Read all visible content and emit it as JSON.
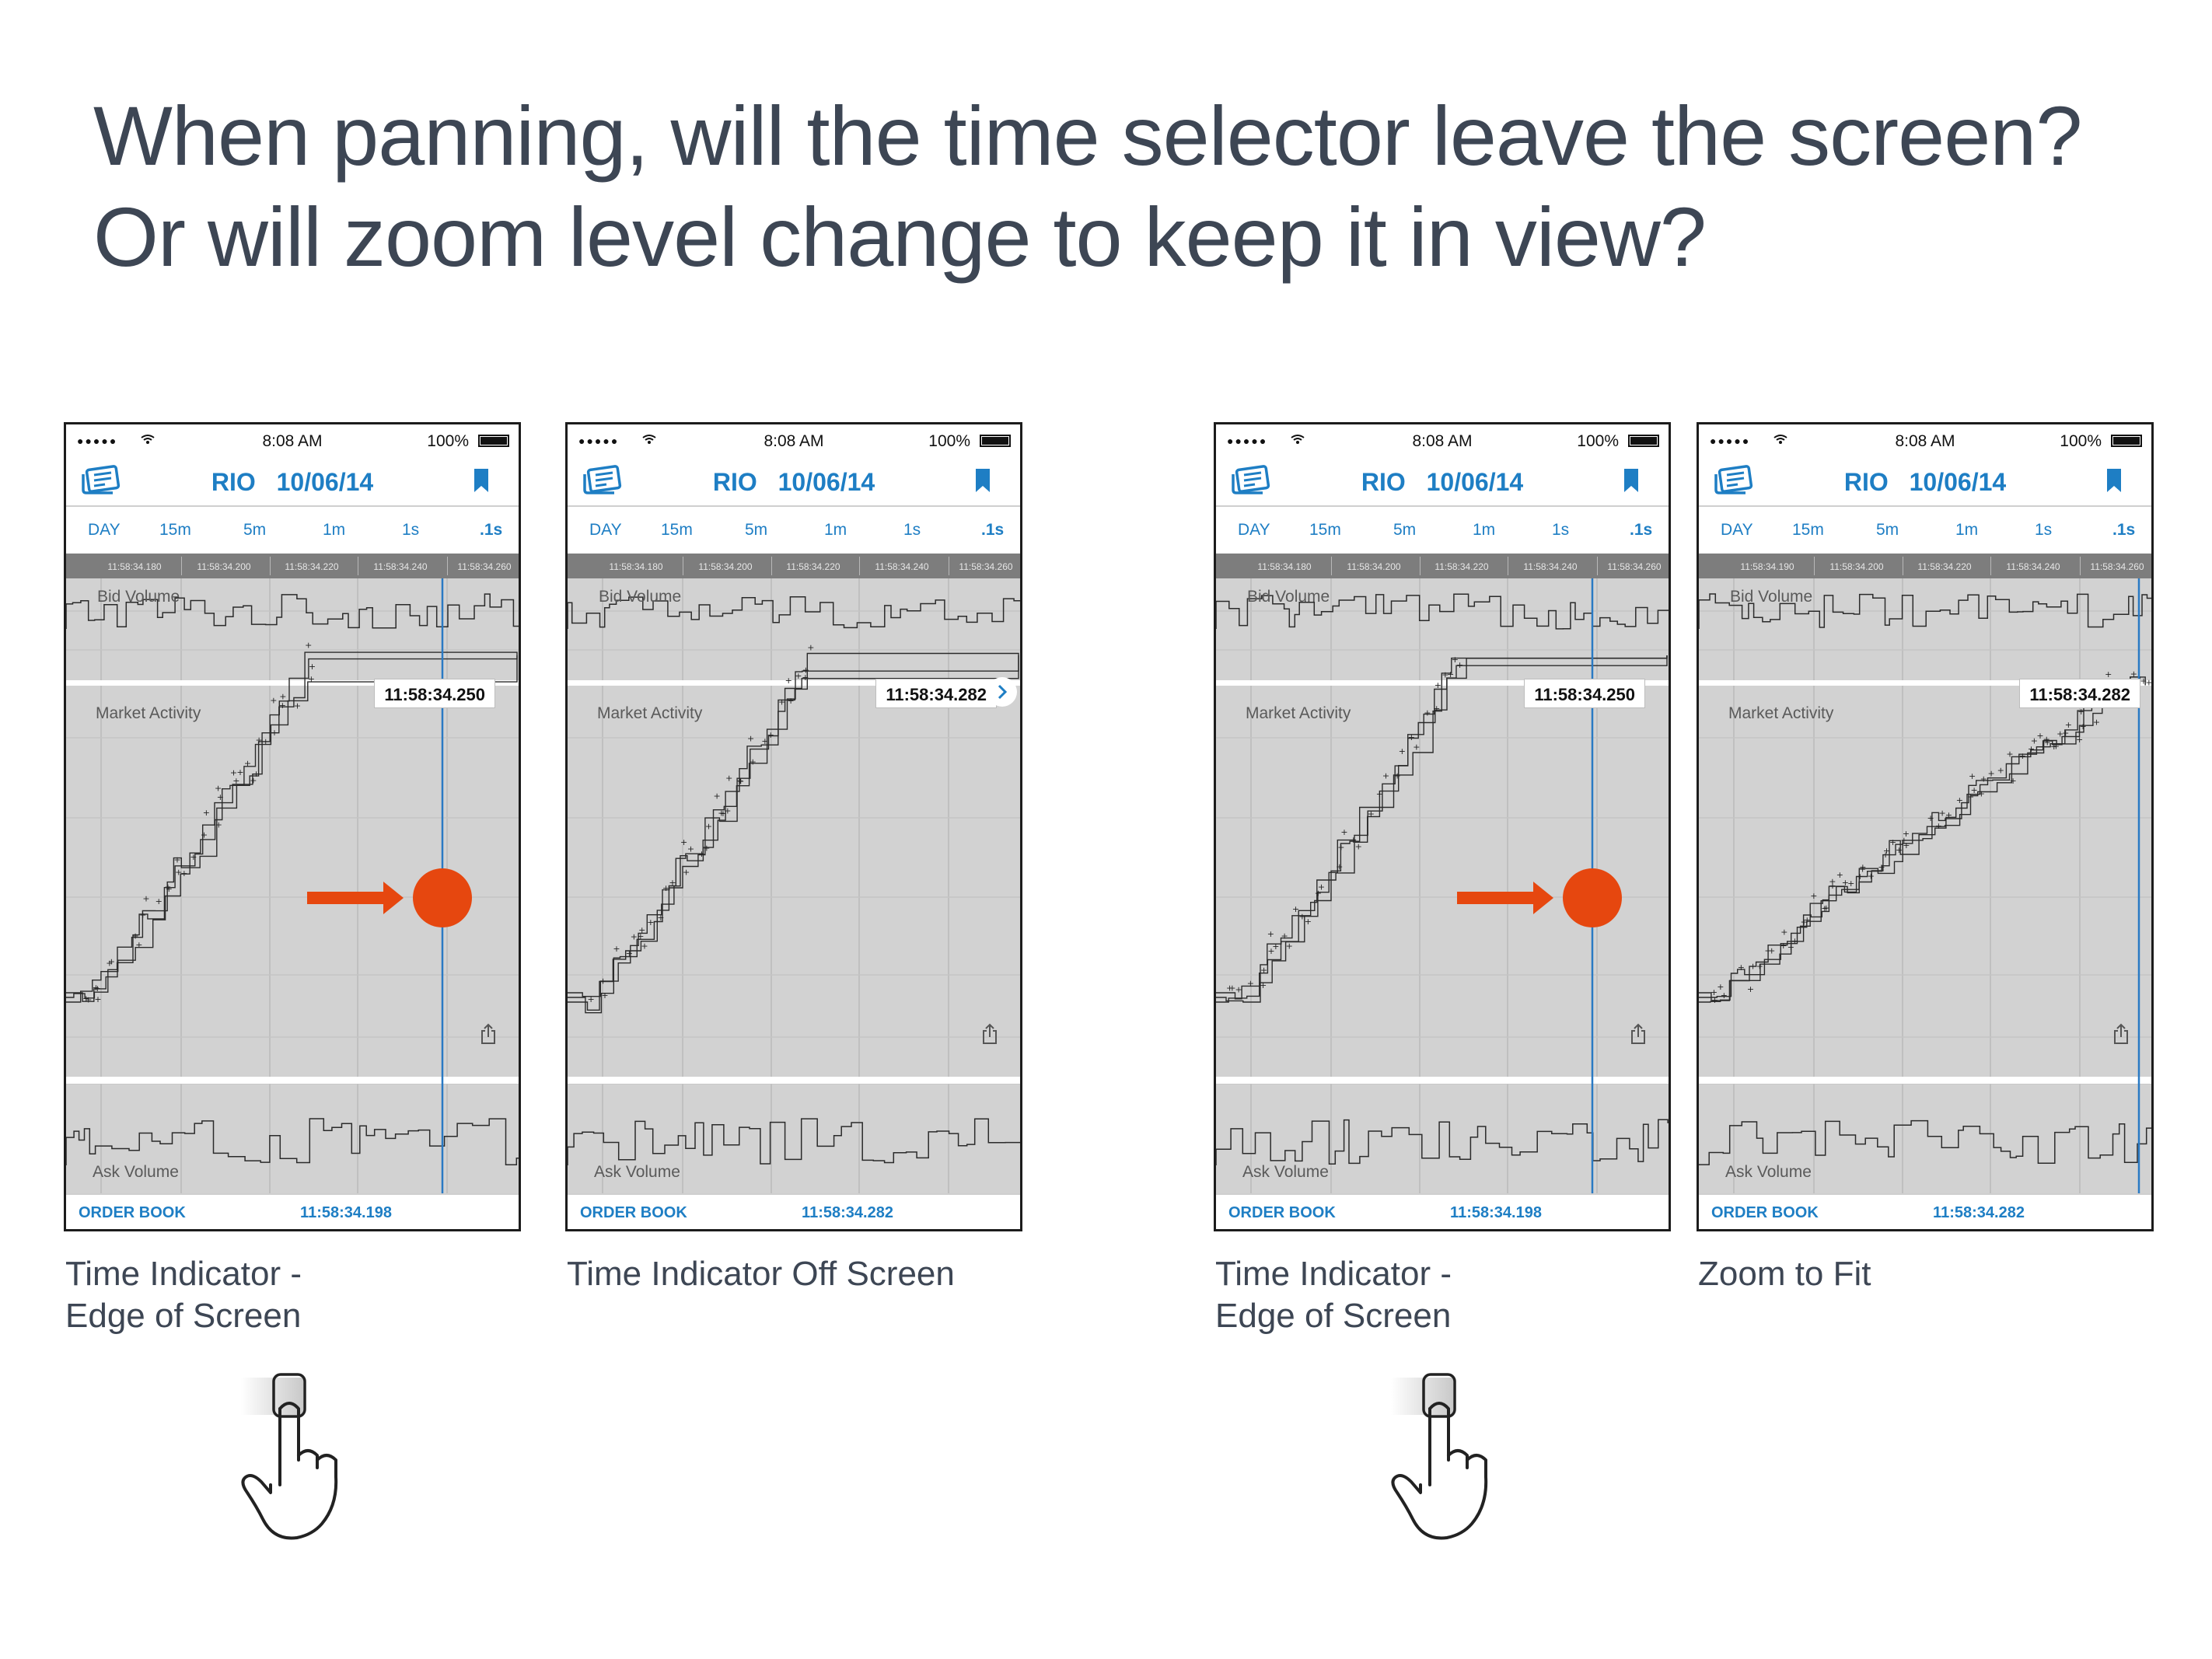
{
  "headline": {
    "line1": "When panning, will the time selector leave the screen?",
    "line2": "Or will zoom level change to keep it in view?"
  },
  "colors": {
    "accent": "#1e7ec4",
    "indicator_line": "#2a7ac4",
    "drag_marker": "#e6470f",
    "chart_background": "#d2d2d2",
    "time_axis_background": "#7d7d7d",
    "headline_text": "#3d4654"
  },
  "phones": [
    {
      "status": {
        "signal": "●●●●● ",
        "clock": "8:08 AM",
        "battery": "100%"
      },
      "nav": {
        "symbol": "RIO",
        "date": "10/06/14",
        "left_icon": "news-icon",
        "right_icon": "bookmark-icon"
      },
      "timeframes": [
        {
          "label": "DAY",
          "active": false
        },
        {
          "label": "15m",
          "active": false
        },
        {
          "label": "5m",
          "active": false
        },
        {
          "label": "1m",
          "active": false
        },
        {
          "label": "1s",
          "active": false
        },
        {
          "label": ".1s",
          "active": true
        }
      ],
      "time_axis": [
        "11:58:34.180",
        "11:58:34.200",
        "11:58:34.220",
        "11:58:34.240",
        "11:58:34.260"
      ],
      "panels": {
        "bid_volume": "Bid Volume",
        "market_activity": "Market Activity",
        "ask_volume": "Ask Volume"
      },
      "cursor_time": "11:58:34.250",
      "indicator": "visible",
      "drag_hint": "arrow-and-dot",
      "footer": {
        "order_book": "ORDER BOOK",
        "time": "11:58:34.198"
      },
      "caption": [
        "Time Indicator -",
        "Edge of Screen"
      ],
      "gesture": "swipe-hand-icon"
    },
    {
      "status": {
        "signal": "●●●●● ",
        "clock": "8:08 AM",
        "battery": "100%"
      },
      "nav": {
        "symbol": "RIO",
        "date": "10/06/14",
        "left_icon": "news-icon",
        "right_icon": "bookmark-icon"
      },
      "timeframes": [
        {
          "label": "DAY",
          "active": false
        },
        {
          "label": "15m",
          "active": false
        },
        {
          "label": "5m",
          "active": false
        },
        {
          "label": "1m",
          "active": false
        },
        {
          "label": "1s",
          "active": false
        },
        {
          "label": ".1s",
          "active": true
        }
      ],
      "time_axis": [
        "11:58:34.180",
        "11:58:34.200",
        "11:58:34.220",
        "11:58:34.240",
        "11:58:34.260"
      ],
      "panels": {
        "bid_volume": "Bid Volume",
        "market_activity": "Market Activity",
        "ask_volume": "Ask Volume"
      },
      "cursor_time": "11:58:34.282",
      "indicator": "offscreen",
      "drag_hint": "none",
      "footer": {
        "order_book": "ORDER BOOK",
        "time": "11:58:34.282"
      },
      "caption": [
        "Time Indicator Off Screen"
      ],
      "gesture": "none"
    },
    {
      "status": {
        "signal": "●●●●● ",
        "clock": "8:08 AM",
        "battery": "100%"
      },
      "nav": {
        "symbol": "RIO",
        "date": "10/06/14",
        "left_icon": "news-icon",
        "right_icon": "bookmark-icon"
      },
      "timeframes": [
        {
          "label": "DAY",
          "active": false
        },
        {
          "label": "15m",
          "active": false
        },
        {
          "label": "5m",
          "active": false
        },
        {
          "label": "1m",
          "active": false
        },
        {
          "label": "1s",
          "active": false
        },
        {
          "label": ".1s",
          "active": true
        }
      ],
      "time_axis": [
        "11:58:34.180",
        "11:58:34.200",
        "11:58:34.220",
        "11:58:34.240",
        "11:58:34.260"
      ],
      "panels": {
        "bid_volume": "Bid Volume",
        "market_activity": "Market Activity",
        "ask_volume": "Ask Volume"
      },
      "cursor_time": "11:58:34.250",
      "indicator": "visible",
      "drag_hint": "arrow-and-dot",
      "footer": {
        "order_book": "ORDER BOOK",
        "time": "11:58:34.198"
      },
      "caption": [
        "Time Indicator -",
        "Edge of Screen"
      ],
      "gesture": "swipe-hand-icon"
    },
    {
      "status": {
        "signal": "●●●●● ",
        "clock": "8:08 AM",
        "battery": "100%"
      },
      "nav": {
        "symbol": "RIO",
        "date": "10/06/14",
        "left_icon": "news-icon",
        "right_icon": "bookmark-icon"
      },
      "timeframes": [
        {
          "label": "DAY",
          "active": false
        },
        {
          "label": "15m",
          "active": false
        },
        {
          "label": "5m",
          "active": false
        },
        {
          "label": "1m",
          "active": false
        },
        {
          "label": "1s",
          "active": false
        },
        {
          "label": ".1s",
          "active": true
        }
      ],
      "time_axis": [
        "11:58:34.190",
        "11:58:34.200",
        "11:58:34.220",
        "11:58:34.240",
        "11:58:34.260"
      ],
      "panels": {
        "bid_volume": "Bid Volume",
        "market_activity": "Market Activity",
        "ask_volume": "Ask Volume"
      },
      "cursor_time": "11:58:34.282",
      "indicator": "edge",
      "drag_hint": "none",
      "footer": {
        "order_book": "ORDER BOOK",
        "time": "11:58:34.282"
      },
      "caption": [
        "Zoom to Fit"
      ],
      "gesture": "none"
    }
  ]
}
